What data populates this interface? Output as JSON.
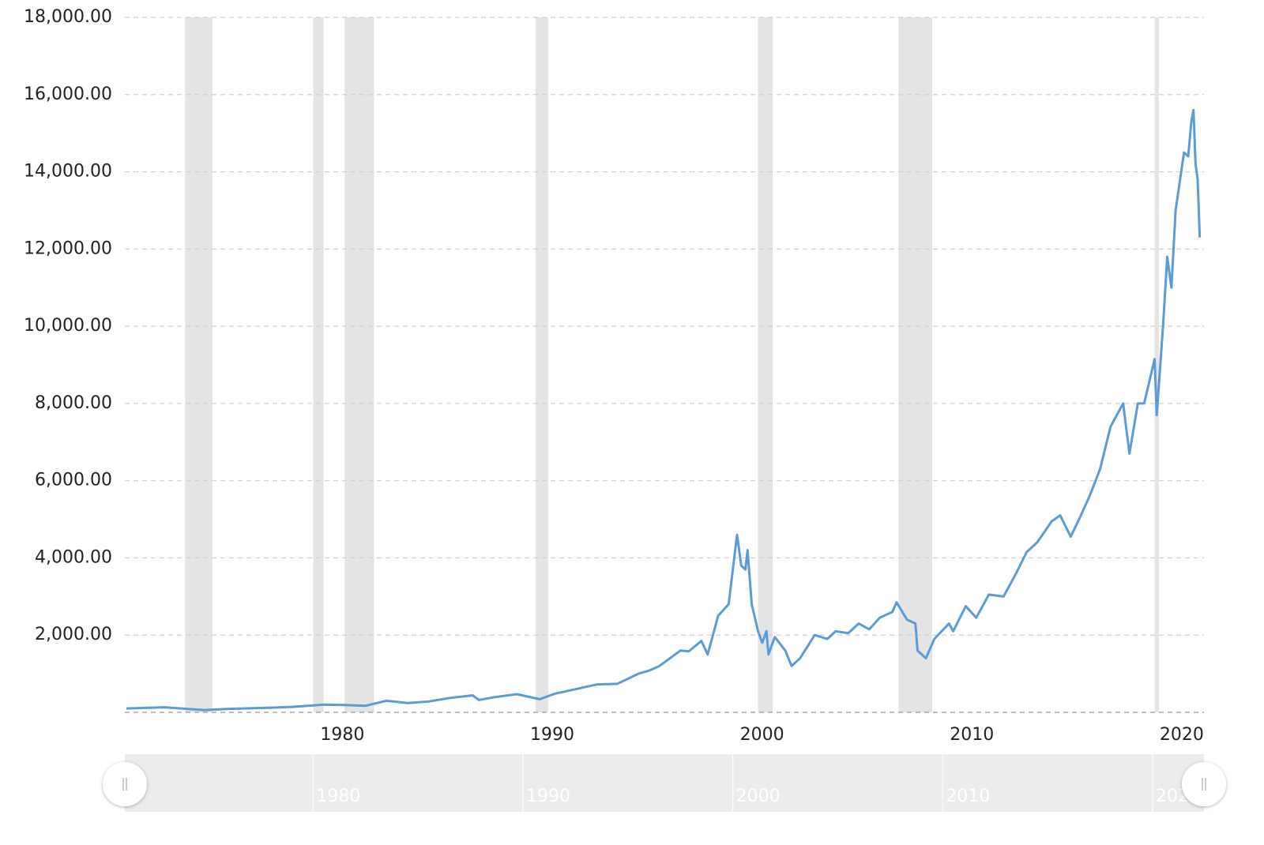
{
  "chart_data": {
    "type": "line",
    "xlim": [
      1971.1,
      2022.3
    ],
    "xticks": [
      1980,
      1990,
      2000,
      2010,
      2020
    ],
    "ylim": [
      0,
      18000
    ],
    "yticks": [
      {
        "value": 2000,
        "label": "2,000.00"
      },
      {
        "value": 4000,
        "label": "4,000.00"
      },
      {
        "value": 6000,
        "label": "6,000.00"
      },
      {
        "value": 8000,
        "label": "8,000.00"
      },
      {
        "value": 10000,
        "label": "10,000.00"
      },
      {
        "value": 12000,
        "label": "12,000.00"
      },
      {
        "value": 14000,
        "label": "14,000.00"
      },
      {
        "value": 16000,
        "label": "16,000.00"
      },
      {
        "value": 18000,
        "label": "18,000.00"
      }
    ],
    "grid": true,
    "recessions": [
      [
        1973.9,
        1975.2
      ],
      [
        1980.0,
        1980.5
      ],
      [
        1981.5,
        1982.9
      ],
      [
        1990.6,
        1991.2
      ],
      [
        2001.2,
        2001.9
      ],
      [
        2007.9,
        2009.5
      ],
      [
        2020.1,
        2020.3
      ]
    ],
    "recession_color": "#e4e4e4",
    "series": [
      {
        "color": "#5b9bd8",
        "x": [
          1971.1,
          1972.9,
          1974.8,
          1976,
          1978,
          1979,
          1980.5,
          1981.5,
          1982.5,
          1983.5,
          1984.5,
          1985.5,
          1986.5,
          1987.6,
          1987.9,
          1988.5,
          1989.7,
          1990.8,
          1991.5,
          1992.5,
          1993.5,
          1994.5,
          1995.5,
          1996,
          1996.5,
          1997.5,
          1997.9,
          1998.5,
          1998.8,
          1999.3,
          1999.8,
          2000.2,
          2000.4,
          2000.6,
          2000.7,
          2000.9,
          2001.2,
          2001.4,
          2001.6,
          2001.7,
          2002,
          2002.5,
          2002.8,
          2003.2,
          2003.9,
          2004.5,
          2004.9,
          2005.5,
          2006,
          2006.5,
          2007,
          2007.6,
          2007.8,
          2008.3,
          2008.7,
          2008.8,
          2009.2,
          2009.6,
          2010.3,
          2010.5,
          2011.1,
          2011.6,
          2012.2,
          2012.9,
          2013.5,
          2014,
          2014.5,
          2015.2,
          2015.6,
          2016.1,
          2016.5,
          2017,
          2017.5,
          2018,
          2018.6,
          2018.9,
          2019.3,
          2019.6,
          2020.1,
          2020.2,
          2020.5,
          2020.7,
          2020.9,
          2021.1,
          2021.5,
          2021.7,
          2021.85,
          2021.95,
          2022.05,
          2022.15,
          2022.25
        ],
        "values": [
          100,
          130,
          60,
          90,
          120,
          140,
          200,
          190,
          170,
          300,
          240,
          280,
          370,
          440,
          320,
          380,
          470,
          340,
          480,
          600,
          720,
          740,
          1000,
          1080,
          1200,
          1600,
          1580,
          1850,
          1500,
          2500,
          2800,
          4600,
          3800,
          3700,
          4200,
          2800,
          2100,
          1800,
          2100,
          1500,
          1950,
          1600,
          1200,
          1400,
          2000,
          1900,
          2100,
          2050,
          2300,
          2150,
          2450,
          2600,
          2850,
          2400,
          2300,
          1600,
          1400,
          1900,
          2300,
          2100,
          2750,
          2450,
          3050,
          3000,
          3600,
          4150,
          4400,
          4950,
          5100,
          4550,
          5000,
          5600,
          6300,
          7400,
          8000,
          6700,
          8000,
          8000,
          9150,
          7700,
          10000,
          11800,
          11000,
          13000,
          14500,
          14400,
          15300,
          15600,
          14200,
          13800,
          12300
        ]
      }
    ]
  }
}
